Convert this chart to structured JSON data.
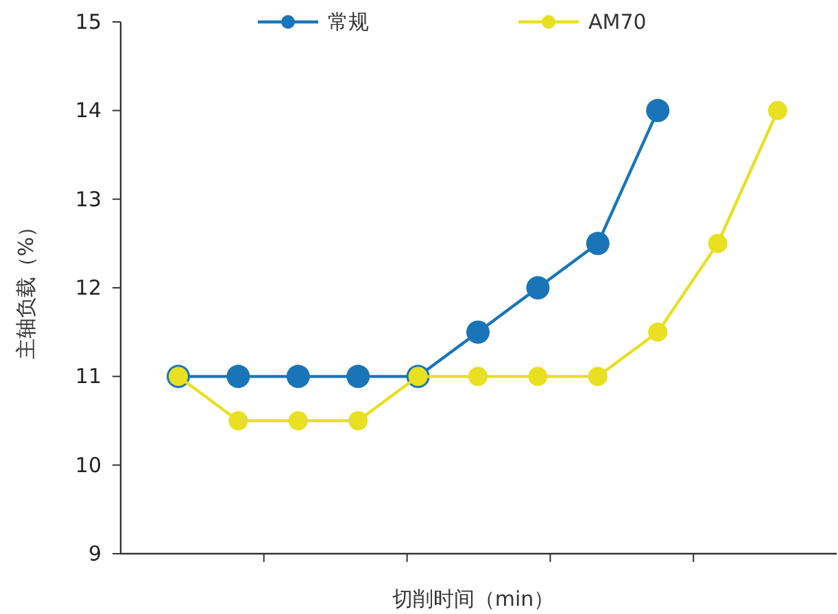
{
  "chart_data": {
    "type": "line",
    "categories": [
      null,
      null,
      null,
      null,
      null,
      null,
      null,
      null,
      null,
      null,
      null
    ],
    "series": [
      {
        "name": "常规",
        "color": "#1a75b8",
        "values": [
          11,
          11,
          11,
          11,
          11,
          11.5,
          12,
          12.5,
          14,
          null,
          null
        ]
      },
      {
        "name": "AM70",
        "color": "#e8e020",
        "values": [
          11,
          10.5,
          10.5,
          10.5,
          11,
          11,
          11,
          11,
          11.5,
          12.5,
          14
        ]
      }
    ],
    "xlabel": "切削时间（min）",
    "ylabel": "主轴负载（%）",
    "ylim": [
      9,
      15
    ],
    "yticks": [
      9,
      10,
      11,
      12,
      13,
      14,
      15
    ],
    "legend": "top",
    "marker": "circle",
    "grid": false
  }
}
